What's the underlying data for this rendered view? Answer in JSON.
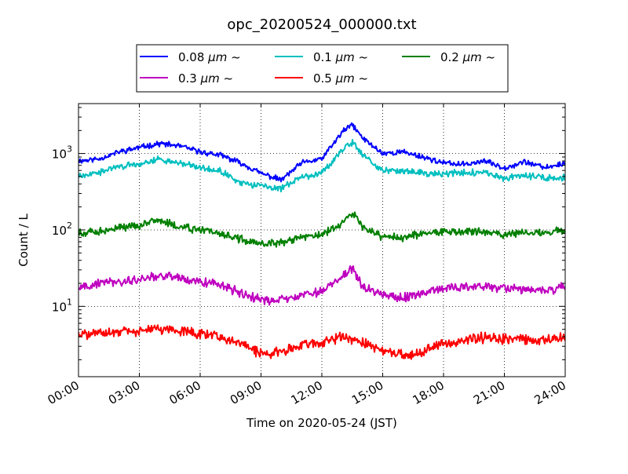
{
  "chart_data": {
    "type": "line",
    "title": "opc_20200524_000000.txt",
    "xlabel": "Time on 2020-05-24 (JST)",
    "ylabel": "Count / L",
    "yscale": "log",
    "ylim": [
      1.2,
      4500
    ],
    "xlim": [
      "00:00",
      "24:00"
    ],
    "x_ticks": [
      "00:00",
      "03:00",
      "06:00",
      "09:00",
      "12:00",
      "15:00",
      "18:00",
      "21:00",
      "24:00"
    ],
    "y_ticks": [
      {
        "base": "10",
        "exp": "1",
        "value": 10
      },
      {
        "base": "10",
        "exp": "2",
        "value": 100
      },
      {
        "base": "10",
        "exp": "3",
        "value": 1000
      }
    ],
    "grid": true,
    "legend_position": "top-center",
    "x": [
      "00:00",
      "01:00",
      "02:00",
      "03:00",
      "04:00",
      "05:00",
      "06:00",
      "07:00",
      "08:00",
      "09:00",
      "10:00",
      "11:00",
      "12:00",
      "13:00",
      "13:30",
      "14:00",
      "15:00",
      "16:00",
      "17:00",
      "18:00",
      "19:00",
      "20:00",
      "21:00",
      "22:00",
      "23:00",
      "24:00"
    ],
    "series": [
      {
        "name": "0.08 μm ~",
        "label_main": "0.08 ",
        "label_unit": "μm",
        "label_tail": " ~",
        "color": "#0000ff",
        "values": [
          800,
          850,
          1050,
          1200,
          1350,
          1250,
          1050,
          950,
          750,
          550,
          450,
          750,
          850,
          1900,
          2400,
          1600,
          1000,
          1050,
          900,
          750,
          720,
          800,
          650,
          780,
          650,
          750
        ]
      },
      {
        "name": "0.1 μm ~",
        "label_main": "0.1 ",
        "label_unit": "μm",
        "label_tail": " ~",
        "color": "#00bfbf",
        "values": [
          520,
          560,
          680,
          720,
          850,
          750,
          650,
          580,
          420,
          380,
          350,
          480,
          560,
          1100,
          1400,
          950,
          600,
          580,
          560,
          540,
          570,
          550,
          470,
          530,
          470,
          480
        ]
      },
      {
        "name": "0.2 μm ~",
        "label_main": "0.2 ",
        "label_unit": "μm",
        "label_tail": " ~",
        "color": "#008000",
        "values": [
          90,
          95,
          105,
          115,
          130,
          110,
          100,
          90,
          75,
          65,
          68,
          80,
          85,
          120,
          170,
          110,
          80,
          80,
          90,
          95,
          95,
          95,
          85,
          95,
          90,
          100
        ]
      },
      {
        "name": "0.3 μm ~",
        "label_main": "0.3 ",
        "label_unit": "μm",
        "label_tail": " ~",
        "color": "#bf00bf",
        "values": [
          18,
          20,
          21,
          22,
          26,
          23,
          21,
          19,
          15,
          12,
          12,
          14,
          16,
          24,
          32,
          18,
          14,
          13,
          15,
          17,
          18,
          18,
          17,
          17,
          16,
          18
        ]
      },
      {
        "name": "0.5 μm ~",
        "label_main": "0.5 ",
        "label_unit": "μm",
        "label_tail": " ~",
        "color": "#ff0000",
        "values": [
          4.2,
          4.3,
          4.6,
          4.8,
          5.0,
          4.8,
          4.4,
          4.0,
          3.2,
          2.4,
          2.5,
          3.1,
          3.4,
          4.0,
          3.8,
          3.4,
          2.7,
          2.3,
          2.5,
          3.4,
          3.6,
          3.9,
          3.8,
          3.7,
          3.6,
          4.0
        ]
      }
    ]
  }
}
